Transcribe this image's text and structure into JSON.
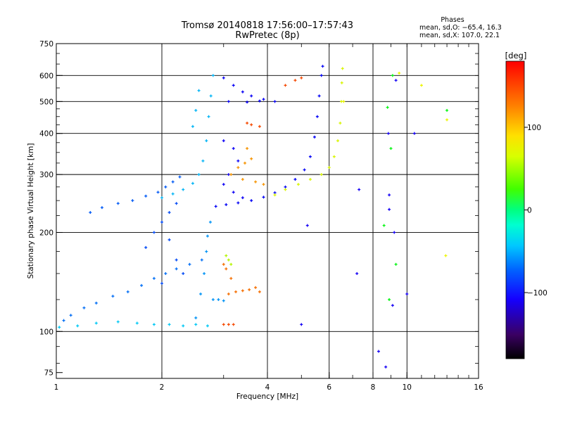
{
  "chart_data": {
    "type": "scatter",
    "title": "Tromsø 20140818 17:56:00–17:57:43",
    "subtitle": "RwPretec (8p)",
    "xlabel": "Frequency [MHz]",
    "ylabel": "Stationary phase Virtual Height [km]",
    "x_scale": "log",
    "y_scale": "log",
    "xlim": [
      1,
      16
    ],
    "ylim": [
      72,
      750
    ],
    "xticks": [
      1,
      2,
      4,
      6,
      8,
      10,
      16
    ],
    "xtick_labels": [
      "1",
      "2",
      "4",
      "6",
      "8",
      "10",
      "16"
    ],
    "yticks": [
      75,
      100,
      200,
      300,
      400,
      500,
      600,
      750
    ],
    "ytick_labels": [
      "75",
      "100",
      "200",
      "300",
      "400",
      "500",
      "600",
      "750"
    ],
    "grid_x": [
      2,
      4,
      6,
      8,
      10
    ],
    "grid_y": [
      100,
      200,
      300,
      400,
      500,
      600
    ],
    "stats": {
      "heading": "Phases",
      "line1": "mean, sd,O: −65.4, 16.3",
      "line2": "mean, sd,X: 107.0, 22.1"
    },
    "colorbar": {
      "label": "[deg]",
      "range": [
        -180,
        180
      ],
      "ticks": [
        100,
        0,
        -100
      ],
      "tick_labels": [
        "100",
        "0",
        "−100"
      ]
    },
    "series": [
      {
        "phase": -60,
        "points": [
          [
            1.05,
            108
          ],
          [
            1.1,
            112
          ],
          [
            1.2,
            118
          ],
          [
            1.3,
            122
          ],
          [
            1.45,
            128
          ],
          [
            1.6,
            132
          ],
          [
            1.75,
            138
          ],
          [
            1.9,
            145
          ],
          [
            2.05,
            150
          ],
          [
            2.2,
            155
          ],
          [
            2.4,
            160
          ],
          [
            2.6,
            165
          ]
        ]
      },
      {
        "phase": -35,
        "points": [
          [
            1.02,
            103
          ],
          [
            1.15,
            104
          ],
          [
            1.3,
            106
          ],
          [
            1.5,
            107
          ],
          [
            1.7,
            106
          ],
          [
            1.9,
            105
          ],
          [
            2.1,
            105
          ],
          [
            2.3,
            104
          ],
          [
            2.5,
            105
          ],
          [
            2.7,
            104
          ]
        ]
      },
      {
        "phase": -70,
        "points": [
          [
            1.8,
            180
          ],
          [
            1.9,
            200
          ],
          [
            2.0,
            215
          ],
          [
            2.1,
            230
          ],
          [
            2.2,
            245
          ],
          [
            2.1,
            190
          ],
          [
            2.2,
            165
          ],
          [
            2.3,
            150
          ],
          [
            2.0,
            140
          ]
        ]
      },
      {
        "phase": -65,
        "points": [
          [
            1.25,
            230
          ],
          [
            1.35,
            238
          ],
          [
            1.5,
            245
          ],
          [
            1.65,
            250
          ],
          [
            1.8,
            258
          ],
          [
            1.95,
            265
          ],
          [
            2.05,
            275
          ],
          [
            2.15,
            285
          ],
          [
            2.25,
            295
          ]
        ]
      },
      {
        "phase": -40,
        "points": [
          [
            2.0,
            255
          ],
          [
            2.15,
            262
          ],
          [
            2.3,
            270
          ],
          [
            2.45,
            282
          ],
          [
            2.55,
            300
          ],
          [
            2.62,
            330
          ],
          [
            2.68,
            380
          ],
          [
            2.72,
            450
          ],
          [
            2.76,
            520
          ],
          [
            2.8,
            600
          ],
          [
            2.55,
            540
          ],
          [
            2.5,
            470
          ],
          [
            2.45,
            420
          ]
        ]
      },
      {
        "phase": -50,
        "points": [
          [
            2.5,
            110
          ],
          [
            2.58,
            130
          ],
          [
            2.64,
            150
          ],
          [
            2.68,
            175
          ],
          [
            2.7,
            195
          ],
          [
            2.75,
            215
          ],
          [
            2.8,
            125
          ],
          [
            2.9,
            125
          ],
          [
            3.0,
            124
          ]
        ]
      },
      {
        "phase": -90,
        "points": [
          [
            2.85,
            240
          ],
          [
            3.05,
            243
          ],
          [
            3.3,
            246
          ],
          [
            3.6,
            250
          ],
          [
            3.9,
            256
          ],
          [
            4.2,
            264
          ],
          [
            4.5,
            275
          ],
          [
            4.8,
            290
          ],
          [
            5.1,
            310
          ],
          [
            5.3,
            340
          ],
          [
            5.45,
            390
          ],
          [
            5.55,
            450
          ],
          [
            5.62,
            520
          ],
          [
            5.7,
            600
          ],
          [
            5.75,
            640
          ]
        ]
      },
      {
        "phase": -95,
        "points": [
          [
            3.0,
            590
          ],
          [
            3.2,
            560
          ],
          [
            3.4,
            535
          ],
          [
            3.6,
            520
          ],
          [
            3.9,
            508
          ],
          [
            4.2,
            500
          ],
          [
            3.1,
            500
          ],
          [
            3.5,
            498
          ],
          [
            3.8,
            502
          ]
        ]
      },
      {
        "phase": -100,
        "points": [
          [
            3.0,
            380
          ],
          [
            3.2,
            360
          ],
          [
            3.3,
            330
          ],
          [
            3.1,
            300
          ],
          [
            3.0,
            280
          ],
          [
            3.2,
            265
          ],
          [
            3.4,
            255
          ]
        ]
      },
      {
        "phase": 140,
        "points": [
          [
            3.15,
            300
          ],
          [
            3.3,
            315
          ],
          [
            3.45,
            325
          ],
          [
            3.6,
            335
          ],
          [
            3.5,
            360
          ],
          [
            3.4,
            290
          ],
          [
            3.7,
            285
          ],
          [
            3.9,
            280
          ]
        ]
      },
      {
        "phase": 105,
        "points": [
          [
            4.2,
            260
          ],
          [
            4.5,
            270
          ],
          [
            4.9,
            280
          ],
          [
            5.3,
            290
          ],
          [
            5.7,
            300
          ],
          [
            6.0,
            315
          ],
          [
            6.2,
            340
          ],
          [
            6.35,
            380
          ],
          [
            6.45,
            430
          ],
          [
            6.5,
            500
          ],
          [
            6.52,
            570
          ],
          [
            6.55,
            630
          ]
        ]
      },
      {
        "phase": 150,
        "points": [
          [
            3.1,
            130
          ],
          [
            3.25,
            132
          ],
          [
            3.4,
            133
          ],
          [
            3.55,
            134
          ],
          [
            3.7,
            136
          ],
          [
            3.8,
            132
          ],
          [
            3.15,
            145
          ],
          [
            3.0,
            160
          ],
          [
            3.05,
            155
          ]
        ]
      },
      {
        "phase": 95,
        "points": [
          [
            3.05,
            170
          ],
          [
            3.1,
            165
          ],
          [
            3.15,
            160
          ]
        ]
      },
      {
        "phase": 160,
        "points": [
          [
            3.0,
            105
          ],
          [
            3.1,
            105
          ],
          [
            3.2,
            105
          ],
          [
            3.5,
            430
          ],
          [
            3.6,
            425
          ],
          [
            3.8,
            420
          ],
          [
            4.5,
            560
          ],
          [
            4.8,
            580
          ],
          [
            5.0,
            590
          ]
        ]
      },
      {
        "phase": -105,
        "points": [
          [
            7.3,
            270
          ],
          [
            7.2,
            150
          ],
          [
            8.3,
            87
          ],
          [
            8.7,
            78
          ],
          [
            8.9,
            235
          ],
          [
            8.9,
            260
          ],
          [
            8.85,
            400
          ],
          [
            9.1,
            120
          ],
          [
            9.2,
            200
          ],
          [
            9.3,
            580
          ],
          [
            10.5,
            400
          ],
          [
            10.0,
            130
          ],
          [
            5.0,
            105
          ],
          [
            5.2,
            210
          ]
        ]
      },
      {
        "phase": 40,
        "points": [
          [
            8.9,
            125
          ],
          [
            9.0,
            360
          ],
          [
            9.1,
            600
          ],
          [
            8.6,
            210
          ],
          [
            8.8,
            480
          ],
          [
            9.3,
            160
          ],
          [
            13.0,
            470
          ]
        ]
      },
      {
        "phase": 110,
        "points": [
          [
            13.0,
            440
          ],
          [
            12.9,
            170
          ],
          [
            11.0,
            560
          ],
          [
            9.5,
            610
          ],
          [
            6.6,
            500
          ]
        ]
      }
    ]
  }
}
